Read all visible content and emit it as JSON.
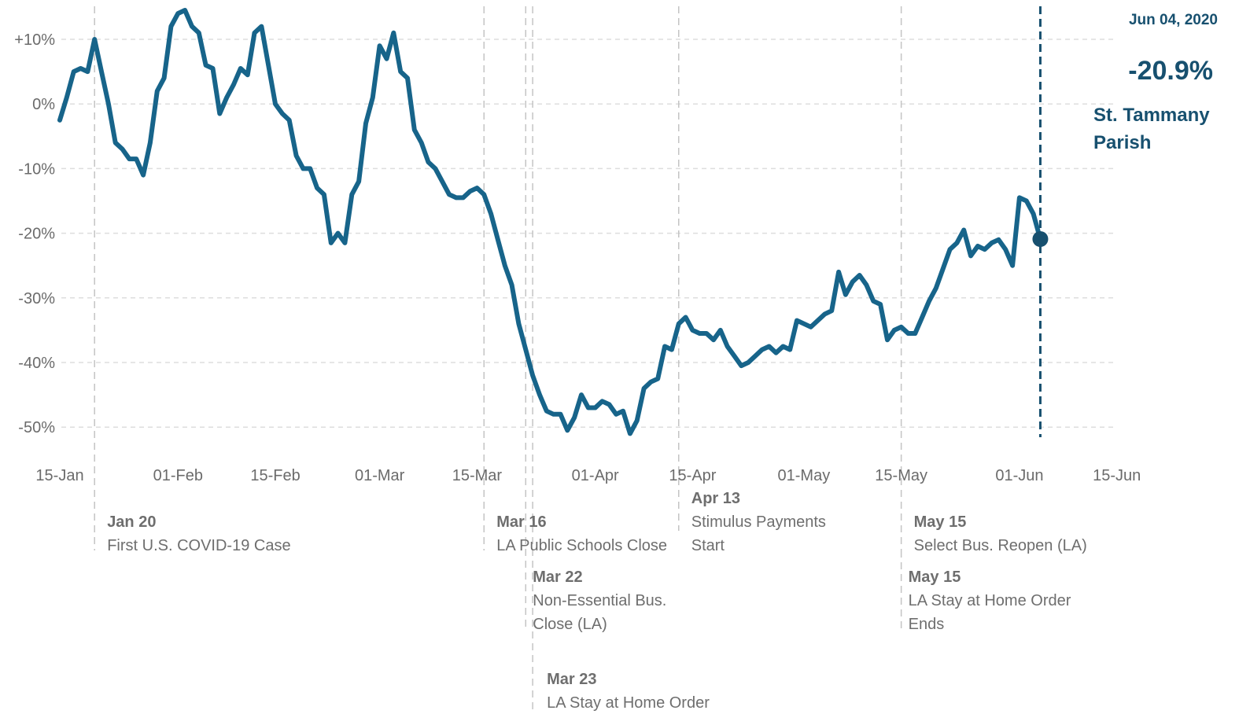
{
  "chart_data": {
    "type": "line",
    "title": "",
    "xlabel": "",
    "ylabel": "",
    "ylim": [
      -55,
      15
    ],
    "grid": true,
    "colors": {
      "line": "#17648a",
      "callout": "#17506f",
      "grid": "#dedede",
      "event_line": "#c4c4c4",
      "annotation": "#6e6e6e"
    },
    "y_ticks": [
      "+10%",
      "0%",
      "-10%",
      "-20%",
      "-30%",
      "-40%",
      "-50%"
    ],
    "y_tick_values": [
      10,
      0,
      -10,
      -20,
      -30,
      -40,
      -50
    ],
    "x_ticks": [
      "15-Jan",
      "01-Feb",
      "15-Feb",
      "01-Mar",
      "15-Mar",
      "01-Apr",
      "15-Apr",
      "01-May",
      "15-May",
      "01-Jun",
      "15-Jun"
    ],
    "x_tick_dates": [
      "2020-01-15",
      "2020-02-01",
      "2020-02-15",
      "2020-03-01",
      "2020-03-15",
      "2020-04-01",
      "2020-04-15",
      "2020-05-01",
      "2020-05-15",
      "2020-06-01",
      "2020-06-15"
    ],
    "series": [
      {
        "values": [
          {
            "x": "2020-01-15",
            "y": -2.5
          },
          {
            "x": "2020-01-16",
            "y": 1
          },
          {
            "x": "2020-01-17",
            "y": 5
          },
          {
            "x": "2020-01-18",
            "y": 5.5
          },
          {
            "x": "2020-01-19",
            "y": 5
          },
          {
            "x": "2020-01-20",
            "y": 10
          },
          {
            "x": "2020-01-21",
            "y": 5
          },
          {
            "x": "2020-01-22",
            "y": 0
          },
          {
            "x": "2020-01-23",
            "y": -6
          },
          {
            "x": "2020-01-24",
            "y": -7
          },
          {
            "x": "2020-01-25",
            "y": -8.5
          },
          {
            "x": "2020-01-26",
            "y": -8.5
          },
          {
            "x": "2020-01-27",
            "y": -11
          },
          {
            "x": "2020-01-28",
            "y": -6
          },
          {
            "x": "2020-01-29",
            "y": 2
          },
          {
            "x": "2020-01-30",
            "y": 4
          },
          {
            "x": "2020-01-31",
            "y": 12
          },
          {
            "x": "2020-02-01",
            "y": 14
          },
          {
            "x": "2020-02-02",
            "y": 14.5
          },
          {
            "x": "2020-02-03",
            "y": 12
          },
          {
            "x": "2020-02-04",
            "y": 11
          },
          {
            "x": "2020-02-05",
            "y": 6
          },
          {
            "x": "2020-02-06",
            "y": 5.5
          },
          {
            "x": "2020-02-07",
            "y": -1.5
          },
          {
            "x": "2020-02-08",
            "y": 1
          },
          {
            "x": "2020-02-09",
            "y": 3
          },
          {
            "x": "2020-02-10",
            "y": 5.5
          },
          {
            "x": "2020-02-11",
            "y": 4.5
          },
          {
            "x": "2020-02-12",
            "y": 11
          },
          {
            "x": "2020-02-13",
            "y": 12
          },
          {
            "x": "2020-02-14",
            "y": 6
          },
          {
            "x": "2020-02-15",
            "y": 0
          },
          {
            "x": "2020-02-16",
            "y": -1.5
          },
          {
            "x": "2020-02-17",
            "y": -2.5
          },
          {
            "x": "2020-02-18",
            "y": -8
          },
          {
            "x": "2020-02-19",
            "y": -10
          },
          {
            "x": "2020-02-20",
            "y": -10
          },
          {
            "x": "2020-02-21",
            "y": -13
          },
          {
            "x": "2020-02-22",
            "y": -14
          },
          {
            "x": "2020-02-23",
            "y": -21.5
          },
          {
            "x": "2020-02-24",
            "y": -20
          },
          {
            "x": "2020-02-25",
            "y": -21.5
          },
          {
            "x": "2020-02-26",
            "y": -14
          },
          {
            "x": "2020-02-27",
            "y": -12
          },
          {
            "x": "2020-02-28",
            "y": -3
          },
          {
            "x": "2020-02-29",
            "y": 1
          },
          {
            "x": "2020-03-01",
            "y": 9
          },
          {
            "x": "2020-03-02",
            "y": 7
          },
          {
            "x": "2020-03-03",
            "y": 11
          },
          {
            "x": "2020-03-04",
            "y": 5
          },
          {
            "x": "2020-03-05",
            "y": 4
          },
          {
            "x": "2020-03-06",
            "y": -4
          },
          {
            "x": "2020-03-07",
            "y": -6
          },
          {
            "x": "2020-03-08",
            "y": -9
          },
          {
            "x": "2020-03-09",
            "y": -10
          },
          {
            "x": "2020-03-10",
            "y": -12
          },
          {
            "x": "2020-03-11",
            "y": -14
          },
          {
            "x": "2020-03-12",
            "y": -14.5
          },
          {
            "x": "2020-03-13",
            "y": -14.5
          },
          {
            "x": "2020-03-14",
            "y": -13.5
          },
          {
            "x": "2020-03-15",
            "y": -13
          },
          {
            "x": "2020-03-16",
            "y": -14
          },
          {
            "x": "2020-03-17",
            "y": -17
          },
          {
            "x": "2020-03-18",
            "y": -21
          },
          {
            "x": "2020-03-19",
            "y": -25
          },
          {
            "x": "2020-03-20",
            "y": -28
          },
          {
            "x": "2020-03-21",
            "y": -34
          },
          {
            "x": "2020-03-22",
            "y": -38
          },
          {
            "x": "2020-03-23",
            "y": -42
          },
          {
            "x": "2020-03-24",
            "y": -45
          },
          {
            "x": "2020-03-25",
            "y": -47.5
          },
          {
            "x": "2020-03-26",
            "y": -48
          },
          {
            "x": "2020-03-27",
            "y": -48
          },
          {
            "x": "2020-03-28",
            "y": -50.5
          },
          {
            "x": "2020-03-29",
            "y": -48.5
          },
          {
            "x": "2020-03-30",
            "y": -45
          },
          {
            "x": "2020-03-31",
            "y": -47
          },
          {
            "x": "2020-04-01",
            "y": -47
          },
          {
            "x": "2020-04-02",
            "y": -46
          },
          {
            "x": "2020-04-03",
            "y": -46.5
          },
          {
            "x": "2020-04-04",
            "y": -48
          },
          {
            "x": "2020-04-05",
            "y": -47.5
          },
          {
            "x": "2020-04-06",
            "y": -51
          },
          {
            "x": "2020-04-07",
            "y": -49
          },
          {
            "x": "2020-04-08",
            "y": -44
          },
          {
            "x": "2020-04-09",
            "y": -43
          },
          {
            "x": "2020-04-10",
            "y": -42.5
          },
          {
            "x": "2020-04-11",
            "y": -37.5
          },
          {
            "x": "2020-04-12",
            "y": -38
          },
          {
            "x": "2020-04-13",
            "y": -34
          },
          {
            "x": "2020-04-14",
            "y": -33
          },
          {
            "x": "2020-04-15",
            "y": -35
          },
          {
            "x": "2020-04-16",
            "y": -35.5
          },
          {
            "x": "2020-04-17",
            "y": -35.5
          },
          {
            "x": "2020-04-18",
            "y": -36.5
          },
          {
            "x": "2020-04-19",
            "y": -35
          },
          {
            "x": "2020-04-20",
            "y": -37.5
          },
          {
            "x": "2020-04-21",
            "y": -39
          },
          {
            "x": "2020-04-22",
            "y": -40.5
          },
          {
            "x": "2020-04-23",
            "y": -40
          },
          {
            "x": "2020-04-24",
            "y": -39
          },
          {
            "x": "2020-04-25",
            "y": -38
          },
          {
            "x": "2020-04-26",
            "y": -37.5
          },
          {
            "x": "2020-04-27",
            "y": -38.5
          },
          {
            "x": "2020-04-28",
            "y": -37.5
          },
          {
            "x": "2020-04-29",
            "y": -38
          },
          {
            "x": "2020-04-30",
            "y": -33.5
          },
          {
            "x": "2020-05-01",
            "y": -34
          },
          {
            "x": "2020-05-02",
            "y": -34.5
          },
          {
            "x": "2020-05-03",
            "y": -33.5
          },
          {
            "x": "2020-05-04",
            "y": -32.5
          },
          {
            "x": "2020-05-05",
            "y": -32
          },
          {
            "x": "2020-05-06",
            "y": -26
          },
          {
            "x": "2020-05-07",
            "y": -29.5
          },
          {
            "x": "2020-05-08",
            "y": -27.5
          },
          {
            "x": "2020-05-09",
            "y": -26.5
          },
          {
            "x": "2020-05-10",
            "y": -28
          },
          {
            "x": "2020-05-11",
            "y": -30.5
          },
          {
            "x": "2020-05-12",
            "y": -31
          },
          {
            "x": "2020-05-13",
            "y": -36.5
          },
          {
            "x": "2020-05-14",
            "y": -35
          },
          {
            "x": "2020-05-15",
            "y": -34.5
          },
          {
            "x": "2020-05-16",
            "y": -35.5
          },
          {
            "x": "2020-05-17",
            "y": -35.5
          },
          {
            "x": "2020-05-18",
            "y": -33
          },
          {
            "x": "2020-05-19",
            "y": -30.5
          },
          {
            "x": "2020-05-20",
            "y": -28.5
          },
          {
            "x": "2020-05-21",
            "y": -25.5
          },
          {
            "x": "2020-05-22",
            "y": -22.5
          },
          {
            "x": "2020-05-23",
            "y": -21.5
          },
          {
            "x": "2020-05-24",
            "y": -19.5
          },
          {
            "x": "2020-05-25",
            "y": -23.5
          },
          {
            "x": "2020-05-26",
            "y": -22
          },
          {
            "x": "2020-05-27",
            "y": -22.5
          },
          {
            "x": "2020-05-28",
            "y": -21.5
          },
          {
            "x": "2020-05-29",
            "y": -21
          },
          {
            "x": "2020-05-30",
            "y": -22.5
          },
          {
            "x": "2020-05-31",
            "y": -25
          },
          {
            "x": "2020-06-01",
            "y": -14.5
          },
          {
            "x": "2020-06-02",
            "y": -15
          },
          {
            "x": "2020-06-03",
            "y": -17
          },
          {
            "x": "2020-06-04",
            "y": -20.9
          }
        ]
      }
    ],
    "callout": {
      "date": "Jun 04, 2020",
      "x": "2020-06-04",
      "value": -20.9,
      "value_label": "-20.9%",
      "name_lines": [
        "St. Tammany",
        "Parish"
      ]
    },
    "annotations": [
      {
        "x": "2020-01-20",
        "date_label": "Jan 20",
        "lines": [
          "First U.S. COVID-19 Case"
        ],
        "row": 0
      },
      {
        "x": "2020-03-16",
        "date_label": "Mar 16",
        "lines": [
          "LA Public Schools Close"
        ],
        "row": 0
      },
      {
        "x": "2020-03-22",
        "date_label": "Mar 22",
        "lines": [
          "Non-Essential Bus.",
          "Close (LA)"
        ],
        "row": 1
      },
      {
        "x": "2020-03-23",
        "date_label": "Mar 23",
        "lines": [
          "LA Stay at Home Order"
        ],
        "row": 2
      },
      {
        "x": "2020-04-13",
        "date_label": "Apr 13",
        "lines": [
          "Stimulus Payments",
          "Start"
        ],
        "row": -1
      },
      {
        "x": "2020-05-15",
        "date_label": "May 15",
        "lines": [
          "Select Bus. Reopen (LA)"
        ],
        "row": 0
      },
      {
        "x": "2020-05-15",
        "date_label": "May 15",
        "lines": [
          "LA Stay at Home Order",
          "Ends"
        ],
        "row": 1
      }
    ]
  }
}
